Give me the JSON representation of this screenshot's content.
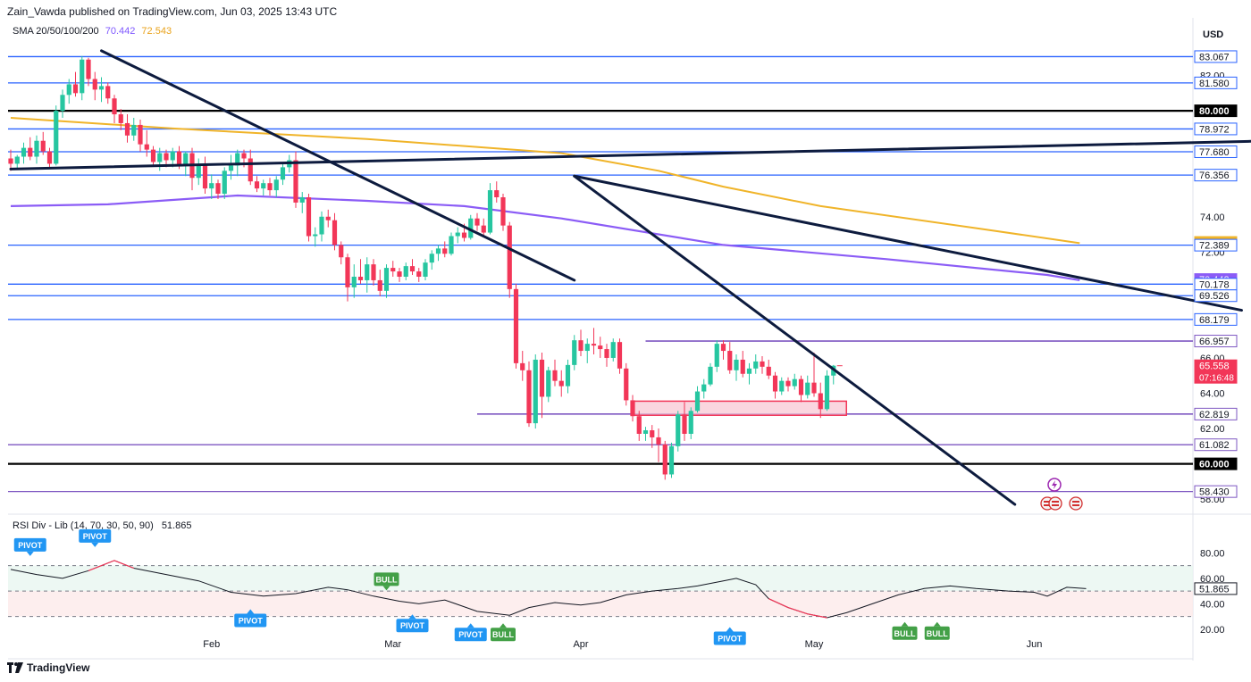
{
  "header": {
    "attribution": "Zain_Vawda published on TradingView.com, Jun 03, 2025 13:43 UTC",
    "sma_legend_name": "SMA 20/50/100/200",
    "sma_value_1": "70.442",
    "sma_value_2": "72.543",
    "currency": "USD"
  },
  "rsi_legend": {
    "name": "RSI Div - Lib (14, 70, 30, 50, 90)",
    "value": "51.865"
  },
  "footer": {
    "brand": "TradingView"
  },
  "colors": {
    "bull": "#26c6a0",
    "bear": "#f23658",
    "blue_line": "#2962ff",
    "purple_line": "#7e57c2",
    "sma_100": "#8b5cf6",
    "sma_200": "#f0b429",
    "trend": "#0d1b3e",
    "support_zone": "#f8c8d4"
  },
  "chart_data": {
    "type": "candlestick",
    "ylim": [
      57.3,
      84.0
    ],
    "x_labels": [
      "Feb",
      "Mar",
      "Apr",
      "May",
      "Jun"
    ],
    "y_ticks": [
      58,
      62,
      64,
      66,
      72,
      74,
      82
    ],
    "price_axis_labels": [
      {
        "value": 83.067,
        "label": "83.067",
        "style": "blue"
      },
      {
        "value": 81.58,
        "label": "81.580",
        "style": "blue"
      },
      {
        "value": 80.0,
        "label": "80.000",
        "style": "black"
      },
      {
        "value": 78.972,
        "label": "78.972",
        "style": "blue"
      },
      {
        "value": 77.68,
        "label": "77.680",
        "style": "blue"
      },
      {
        "value": 76.356,
        "label": "76.356",
        "style": "blue"
      },
      {
        "value": 72.543,
        "label": "72.543",
        "style": "sma200"
      },
      {
        "value": 72.389,
        "label": "72.389",
        "style": "blue"
      },
      {
        "value": 70.442,
        "label": "70.442",
        "style": "sma100"
      },
      {
        "value": 70.178,
        "label": "70.178",
        "style": "blue"
      },
      {
        "value": 69.526,
        "label": "69.526",
        "style": "blue"
      },
      {
        "value": 68.179,
        "label": "68.179",
        "style": "blue"
      },
      {
        "value": 66.957,
        "label": "66.957",
        "style": "purple"
      },
      {
        "value": 65.558,
        "label": "65.558",
        "style": "last"
      },
      {
        "value": 62.819,
        "label": "62.819",
        "style": "purple"
      },
      {
        "value": 61.082,
        "label": "61.082",
        "style": "purple"
      },
      {
        "value": 60.0,
        "label": "60.000",
        "style": "black"
      },
      {
        "value": 58.43,
        "label": "58.430",
        "style": "purple"
      }
    ],
    "countdown": "07:16:48",
    "horizontal_levels": [
      {
        "value": 83.067,
        "style": "blue"
      },
      {
        "value": 81.58,
        "style": "blue"
      },
      {
        "value": 80.0,
        "style": "black"
      },
      {
        "value": 78.972,
        "style": "blue"
      },
      {
        "value": 77.68,
        "style": "blue"
      },
      {
        "value": 76.356,
        "style": "blue"
      },
      {
        "value": 72.389,
        "style": "blue"
      },
      {
        "value": 70.178,
        "style": "blue"
      },
      {
        "value": 69.526,
        "style": "blue"
      },
      {
        "value": 68.179,
        "style": "blue"
      },
      {
        "value": 61.082,
        "style": "purple"
      },
      {
        "value": 60.0,
        "style": "black"
      },
      {
        "value": 58.43,
        "style": "purple"
      }
    ],
    "partial_levels": [
      {
        "value": 66.957,
        "from_day": 98
      },
      {
        "value": 62.819,
        "from_day": 72
      }
    ],
    "support_zone": {
      "from_day": 96,
      "to_day": 129,
      "low": 62.75,
      "high": 63.55
    },
    "candles": [
      [
        77.3,
        77.8,
        76.6,
        77.0
      ],
      [
        77.0,
        77.5,
        76.7,
        77.4
      ],
      [
        77.4,
        78.2,
        77.0,
        77.9
      ],
      [
        77.9,
        78.5,
        77.2,
        77.4
      ],
      [
        77.4,
        78.6,
        77.0,
        78.3
      ],
      [
        78.3,
        78.8,
        77.5,
        77.7
      ],
      [
        77.7,
        77.9,
        76.7,
        77.0
      ],
      [
        77.0,
        80.3,
        76.9,
        80.0
      ],
      [
        80.0,
        81.2,
        79.6,
        80.9
      ],
      [
        80.9,
        81.8,
        80.4,
        81.5
      ],
      [
        81.5,
        82.2,
        80.8,
        81.0
      ],
      [
        81.0,
        83.1,
        80.6,
        82.9
      ],
      [
        82.9,
        83.0,
        81.4,
        81.8
      ],
      [
        81.8,
        82.2,
        80.6,
        81.2
      ],
      [
        81.2,
        81.9,
        80.5,
        81.4
      ],
      [
        81.4,
        81.6,
        80.4,
        80.7
      ],
      [
        80.7,
        80.9,
        79.3,
        79.8
      ],
      [
        79.8,
        80.1,
        78.9,
        79.3
      ],
      [
        79.3,
        79.8,
        78.2,
        78.6
      ],
      [
        78.6,
        79.6,
        78.3,
        79.2
      ],
      [
        79.2,
        79.5,
        77.7,
        78.1
      ],
      [
        78.1,
        78.9,
        77.4,
        77.8
      ],
      [
        77.8,
        78.0,
        76.9,
        77.1
      ],
      [
        77.1,
        77.9,
        76.6,
        77.6
      ],
      [
        77.6,
        77.8,
        76.8,
        77.2
      ],
      [
        77.2,
        77.9,
        76.8,
        77.7
      ],
      [
        77.7,
        78.0,
        76.7,
        76.9
      ],
      [
        76.9,
        77.7,
        76.3,
        77.6
      ],
      [
        77.6,
        77.9,
        75.5,
        76.2
      ],
      [
        76.2,
        77.3,
        75.8,
        77.0
      ],
      [
        77.0,
        77.4,
        75.3,
        75.6
      ],
      [
        75.6,
        76.4,
        75.0,
        75.9
      ],
      [
        75.9,
        76.1,
        75.0,
        75.3
      ],
      [
        75.3,
        76.8,
        75.0,
        76.6
      ],
      [
        76.6,
        77.5,
        76.1,
        76.9
      ],
      [
        76.9,
        77.8,
        76.3,
        77.6
      ],
      [
        77.6,
        77.8,
        76.8,
        77.3
      ],
      [
        77.3,
        77.8,
        75.8,
        76.0
      ],
      [
        76.0,
        76.3,
        75.4,
        75.6
      ],
      [
        75.6,
        76.1,
        75.2,
        75.9
      ],
      [
        75.9,
        76.2,
        75.2,
        75.5
      ],
      [
        75.5,
        76.3,
        75.1,
        76.1
      ],
      [
        76.1,
        77.0,
        75.8,
        76.8
      ],
      [
        76.8,
        77.5,
        76.5,
        77.2
      ],
      [
        77.2,
        77.7,
        74.5,
        74.8
      ],
      [
        74.8,
        75.4,
        74.2,
        75.1
      ],
      [
        75.1,
        75.3,
        72.6,
        72.9
      ],
      [
        72.9,
        73.4,
        72.3,
        73.0
      ],
      [
        73.0,
        74.3,
        72.6,
        74.0
      ],
      [
        74.0,
        74.4,
        73.4,
        73.8
      ],
      [
        73.8,
        74.2,
        72.1,
        72.4
      ],
      [
        72.4,
        72.6,
        71.3,
        71.7
      ],
      [
        71.7,
        71.9,
        69.2,
        70.0
      ],
      [
        70.0,
        71.3,
        69.4,
        70.6
      ],
      [
        70.6,
        71.6,
        70.2,
        70.4
      ],
      [
        70.4,
        71.7,
        69.7,
        71.3
      ],
      [
        71.3,
        71.6,
        70.1,
        70.4
      ],
      [
        70.4,
        71.0,
        69.5,
        69.8
      ],
      [
        69.8,
        71.3,
        69.4,
        71.1
      ],
      [
        71.1,
        71.5,
        70.6,
        70.9
      ],
      [
        70.9,
        71.1,
        70.3,
        70.6
      ],
      [
        70.6,
        71.4,
        70.4,
        71.2
      ],
      [
        71.2,
        71.6,
        70.7,
        70.9
      ],
      [
        70.9,
        71.1,
        70.3,
        70.6
      ],
      [
        70.6,
        71.6,
        70.4,
        71.4
      ],
      [
        71.4,
        72.1,
        71.0,
        71.9
      ],
      [
        71.9,
        72.4,
        71.5,
        72.2
      ],
      [
        72.2,
        72.6,
        71.7,
        71.9
      ],
      [
        71.9,
        73.1,
        71.8,
        72.9
      ],
      [
        72.9,
        73.4,
        72.5,
        73.1
      ],
      [
        73.1,
        73.6,
        72.6,
        72.8
      ],
      [
        72.8,
        74.1,
        72.7,
        73.9
      ],
      [
        73.9,
        74.2,
        73.2,
        73.5
      ],
      [
        73.5,
        73.9,
        72.9,
        73.1
      ],
      [
        73.1,
        75.9,
        73.0,
        75.5
      ],
      [
        75.5,
        76.0,
        74.8,
        75.1
      ],
      [
        75.1,
        75.3,
        73.2,
        73.5
      ],
      [
        73.5,
        73.7,
        69.4,
        69.9
      ],
      [
        69.9,
        70.2,
        65.4,
        65.7
      ],
      [
        65.7,
        66.4,
        64.7,
        65.3
      ],
      [
        65.3,
        65.8,
        62.1,
        62.3
      ],
      [
        62.3,
        66.2,
        62.0,
        65.9
      ],
      [
        65.9,
        66.3,
        62.6,
        63.8
      ],
      [
        63.8,
        65.5,
        63.5,
        65.3
      ],
      [
        65.3,
        65.9,
        64.4,
        64.7
      ],
      [
        64.7,
        65.3,
        63.8,
        64.4
      ],
      [
        64.4,
        65.9,
        64.0,
        65.6
      ],
      [
        65.6,
        67.3,
        65.3,
        67.0
      ],
      [
        67.0,
        67.6,
        66.1,
        66.4
      ],
      [
        66.4,
        67.1,
        65.7,
        66.8
      ],
      [
        66.8,
        67.7,
        66.2,
        66.7
      ],
      [
        66.7,
        67.2,
        66.0,
        66.5
      ],
      [
        66.5,
        66.8,
        65.5,
        66.0
      ],
      [
        66.0,
        67.1,
        65.8,
        66.9
      ],
      [
        66.9,
        67.1,
        65.1,
        65.4
      ],
      [
        65.4,
        65.7,
        63.3,
        63.6
      ],
      [
        63.6,
        63.9,
        62.4,
        62.7
      ],
      [
        62.7,
        63.0,
        61.3,
        61.7
      ],
      [
        61.7,
        62.1,
        61.3,
        61.9
      ],
      [
        61.9,
        62.2,
        60.9,
        61.5
      ],
      [
        61.5,
        62.0,
        60.1,
        61.1
      ],
      [
        61.1,
        61.3,
        59.1,
        59.4
      ],
      [
        59.4,
        61.2,
        59.2,
        61.0
      ],
      [
        61.0,
        63.0,
        60.7,
        62.8
      ],
      [
        62.8,
        63.5,
        61.3,
        61.7
      ],
      [
        61.7,
        63.2,
        61.4,
        63.0
      ],
      [
        63.0,
        64.4,
        62.9,
        64.1
      ],
      [
        64.1,
        64.8,
        63.7,
        64.5
      ],
      [
        64.5,
        65.7,
        64.4,
        65.5
      ],
      [
        65.5,
        67.0,
        65.2,
        66.8
      ],
      [
        66.8,
        67.0,
        65.9,
        66.4
      ],
      [
        66.4,
        66.9,
        65.1,
        65.3
      ],
      [
        65.3,
        66.2,
        64.7,
        65.9
      ],
      [
        65.9,
        66.4,
        64.9,
        65.1
      ],
      [
        65.1,
        65.7,
        64.5,
        65.4
      ],
      [
        65.4,
        66.2,
        65.1,
        65.8
      ],
      [
        65.8,
        66.1,
        65.1,
        65.5
      ],
      [
        65.5,
        65.9,
        64.8,
        65.0
      ],
      [
        65.0,
        65.2,
        63.7,
        64.1
      ],
      [
        64.1,
        64.9,
        63.9,
        64.7
      ],
      [
        64.7,
        64.9,
        64.1,
        64.4
      ],
      [
        64.4,
        65.1,
        64.2,
        64.8
      ],
      [
        64.8,
        65.0,
        63.5,
        63.9
      ],
      [
        63.9,
        65.0,
        63.7,
        64.6
      ],
      [
        64.6,
        66.3,
        63.8,
        64.0
      ],
      [
        64.0,
        64.6,
        62.6,
        63.1
      ],
      [
        63.1,
        65.3,
        63.0,
        65.0
      ],
      [
        65.0,
        65.6,
        64.5,
        65.558
      ]
    ],
    "sma_100": [
      [
        0,
        74.6
      ],
      [
        15,
        74.7
      ],
      [
        35,
        75.2
      ],
      [
        55,
        74.9
      ],
      [
        70,
        74.6
      ],
      [
        85,
        73.9
      ],
      [
        110,
        72.4
      ],
      [
        135,
        71.6
      ],
      [
        160,
        70.7
      ],
      [
        165,
        70.4
      ]
    ],
    "sma_200": [
      [
        0,
        79.6
      ],
      [
        25,
        79.0
      ],
      [
        55,
        78.4
      ],
      [
        85,
        77.6
      ],
      [
        100,
        76.6
      ],
      [
        110,
        75.7
      ],
      [
        125,
        74.6
      ],
      [
        150,
        73.3
      ],
      [
        165,
        72.5
      ]
    ],
    "trendlines": [
      {
        "from": [
          14,
          83.4
        ],
        "to": [
          87,
          70.4
        ]
      },
      {
        "from": [
          87,
          76.3
        ],
        "to": [
          155,
          57.7
        ]
      },
      {
        "from": [
          0,
          76.7
        ],
        "to": [
          195,
          78.3
        ]
      },
      {
        "from": [
          87,
          76.3
        ],
        "to": [
          190,
          68.7
        ]
      }
    ],
    "rsi": {
      "ylim": [
        15,
        95
      ],
      "ticks": [
        80,
        60,
        40,
        20
      ],
      "tick_labels": [
        "80.00",
        "60.00",
        "40.00",
        "20.00"
      ],
      "levels": [
        70,
        50,
        30
      ],
      "last_label": "51.865",
      "values": [
        [
          0,
          67
        ],
        [
          4,
          63
        ],
        [
          8,
          60
        ],
        [
          12,
          66
        ],
        [
          16,
          74
        ],
        [
          19,
          68
        ],
        [
          24,
          63
        ],
        [
          29,
          58
        ],
        [
          34,
          49
        ],
        [
          39,
          46
        ],
        [
          44,
          48
        ],
        [
          49,
          53
        ],
        [
          52,
          51
        ],
        [
          56,
          46
        ],
        [
          60,
          42
        ],
        [
          63,
          40
        ],
        [
          67,
          43
        ],
        [
          72,
          34
        ],
        [
          77,
          31
        ],
        [
          80,
          37
        ],
        [
          84,
          41
        ],
        [
          88,
          39
        ],
        [
          91,
          41
        ],
        [
          95,
          47
        ],
        [
          99,
          50
        ],
        [
          103,
          52
        ],
        [
          106,
          54
        ],
        [
          110,
          58
        ],
        [
          112,
          60
        ],
        [
          115,
          55
        ],
        [
          117,
          44
        ],
        [
          120,
          37
        ],
        [
          123,
          32
        ],
        [
          126,
          29
        ],
        [
          129,
          33
        ],
        [
          133,
          40
        ],
        [
          137,
          47
        ],
        [
          141,
          52
        ],
        [
          145,
          54
        ],
        [
          149,
          52
        ],
        [
          154,
          50
        ],
        [
          158,
          49
        ],
        [
          160,
          46
        ],
        [
          163,
          53
        ],
        [
          166,
          51.9
        ]
      ],
      "red_spans": [
        [
          12,
          19
        ],
        [
          117,
          127
        ]
      ],
      "labels": [
        {
          "text": "PIVOT",
          "day": 3,
          "value": 67,
          "pos": "above",
          "kind": "pivot"
        },
        {
          "text": "PIVOT",
          "day": 13,
          "value": 74,
          "pos": "above",
          "kind": "pivot"
        },
        {
          "text": "PIVOT",
          "day": 37,
          "value": 42,
          "pos": "below",
          "kind": "pivot"
        },
        {
          "text": "BULL",
          "day": 58,
          "value": 40,
          "pos": "above",
          "kind": "bull"
        },
        {
          "text": "PIVOT",
          "day": 62,
          "value": 38,
          "pos": "below",
          "kind": "pivot"
        },
        {
          "text": "PIVOT",
          "day": 71,
          "value": 31,
          "pos": "below",
          "kind": "pivot"
        },
        {
          "text": "BULL",
          "day": 76,
          "value": 31,
          "pos": "below",
          "kind": "bull"
        },
        {
          "text": "PIVOT",
          "day": 111,
          "value": 28,
          "pos": "below",
          "kind": "pivot"
        },
        {
          "text": "BULL",
          "day": 138,
          "value": 32,
          "pos": "below",
          "kind": "bull"
        },
        {
          "text": "BULL",
          "day": 143,
          "value": 32,
          "pos": "below",
          "kind": "bull"
        }
      ]
    }
  }
}
